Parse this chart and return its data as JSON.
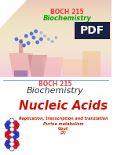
{
  "bg_color": "#ffffff",
  "top_label": "BOCH 215",
  "top_sublabel": "Biochemistry",
  "top_label_color": "#ff3333",
  "top_sublabel_color": "#00aa00",
  "section_label": "BOCH 215",
  "section_label_color": "#ff4444",
  "section_sublabel": "Biochemistry",
  "section_sublabel_color": "#333333",
  "title": "Nucleic Acids",
  "title_color": "#cc1100",
  "subtitle1": "Replication, transcription and translation",
  "subtitle2": "Purine metabolism",
  "subtitle3": "Gout",
  "subtitle4": "(3)",
  "subtitle_color": "#cc2200",
  "line_color": "#6699cc",
  "pdf_label": "PDF",
  "pdf_bg": "#1a2244",
  "pdf_color": "#ffffff",
  "img_top_color": "#f8d0c8",
  "img_mid_color": "#f5c4bc",
  "fold_size": 35
}
